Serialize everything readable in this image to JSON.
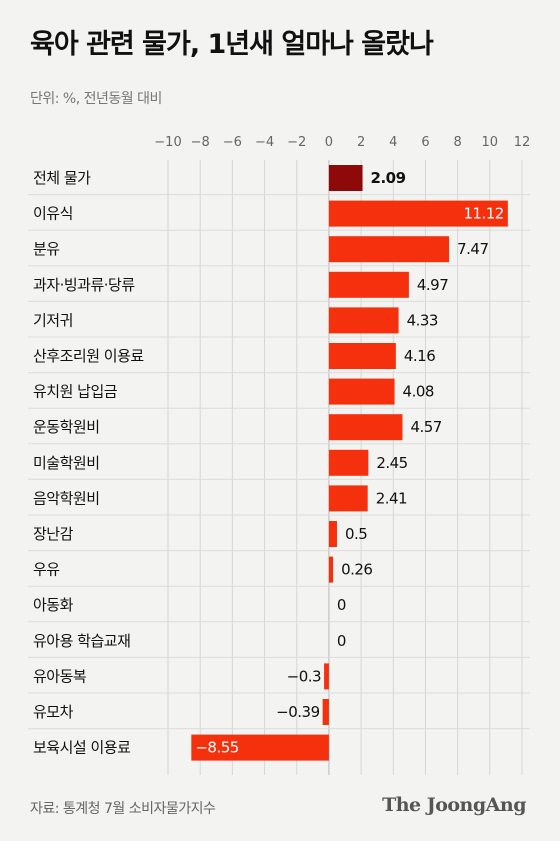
{
  "header": {
    "title": "육아 관련 물가, 1년새 얼마나 올랐나",
    "unit": "단위: %, 전년동월 대비"
  },
  "footer": {
    "source": "자료: 통계청 7월 소비자물가지수",
    "brand": "The JoongAng"
  },
  "colors": {
    "highlight": "#8e0a0a",
    "bar": "#f5300c",
    "grid": "#d6d6d6",
    "background": "#f3f3f1"
  },
  "chart_data": {
    "type": "bar",
    "orientation": "horizontal",
    "title": "육아 관련 물가, 1년새 얼마나 올랐나",
    "xlabel": "",
    "ylabel": "",
    "xlim": [
      -10,
      12
    ],
    "xticks": [
      -10,
      -8,
      -6,
      -4,
      -2,
      0,
      2,
      4,
      6,
      8,
      10,
      12
    ],
    "grid": true,
    "categories": [
      "전체 물가",
      "이유식",
      "분유",
      "과자·빙과류·당류",
      "기저귀",
      "산후조리원 이용료",
      "유치원 납입금",
      "운동학원비",
      "미술학원비",
      "음악학원비",
      "장난감",
      "우유",
      "아동화",
      "유아용 학습교재",
      "유아동복",
      "유모차",
      "보육시설 이용료"
    ],
    "values": [
      2.09,
      11.12,
      7.47,
      4.97,
      4.33,
      4.16,
      4.08,
      4.57,
      2.45,
      2.41,
      0.5,
      0.26,
      0,
      0,
      -0.3,
      -0.39,
      -8.55
    ],
    "value_labels": [
      "2.09",
      "11.12",
      "7.47",
      "4.97",
      "4.33",
      "4.16",
      "4.08",
      "4.57",
      "2.45",
      "2.41",
      "0.5",
      "0.26",
      "0",
      "0",
      "−0.3",
      "−0.39",
      "−8.55"
    ],
    "highlight_category": "전체 물가"
  }
}
